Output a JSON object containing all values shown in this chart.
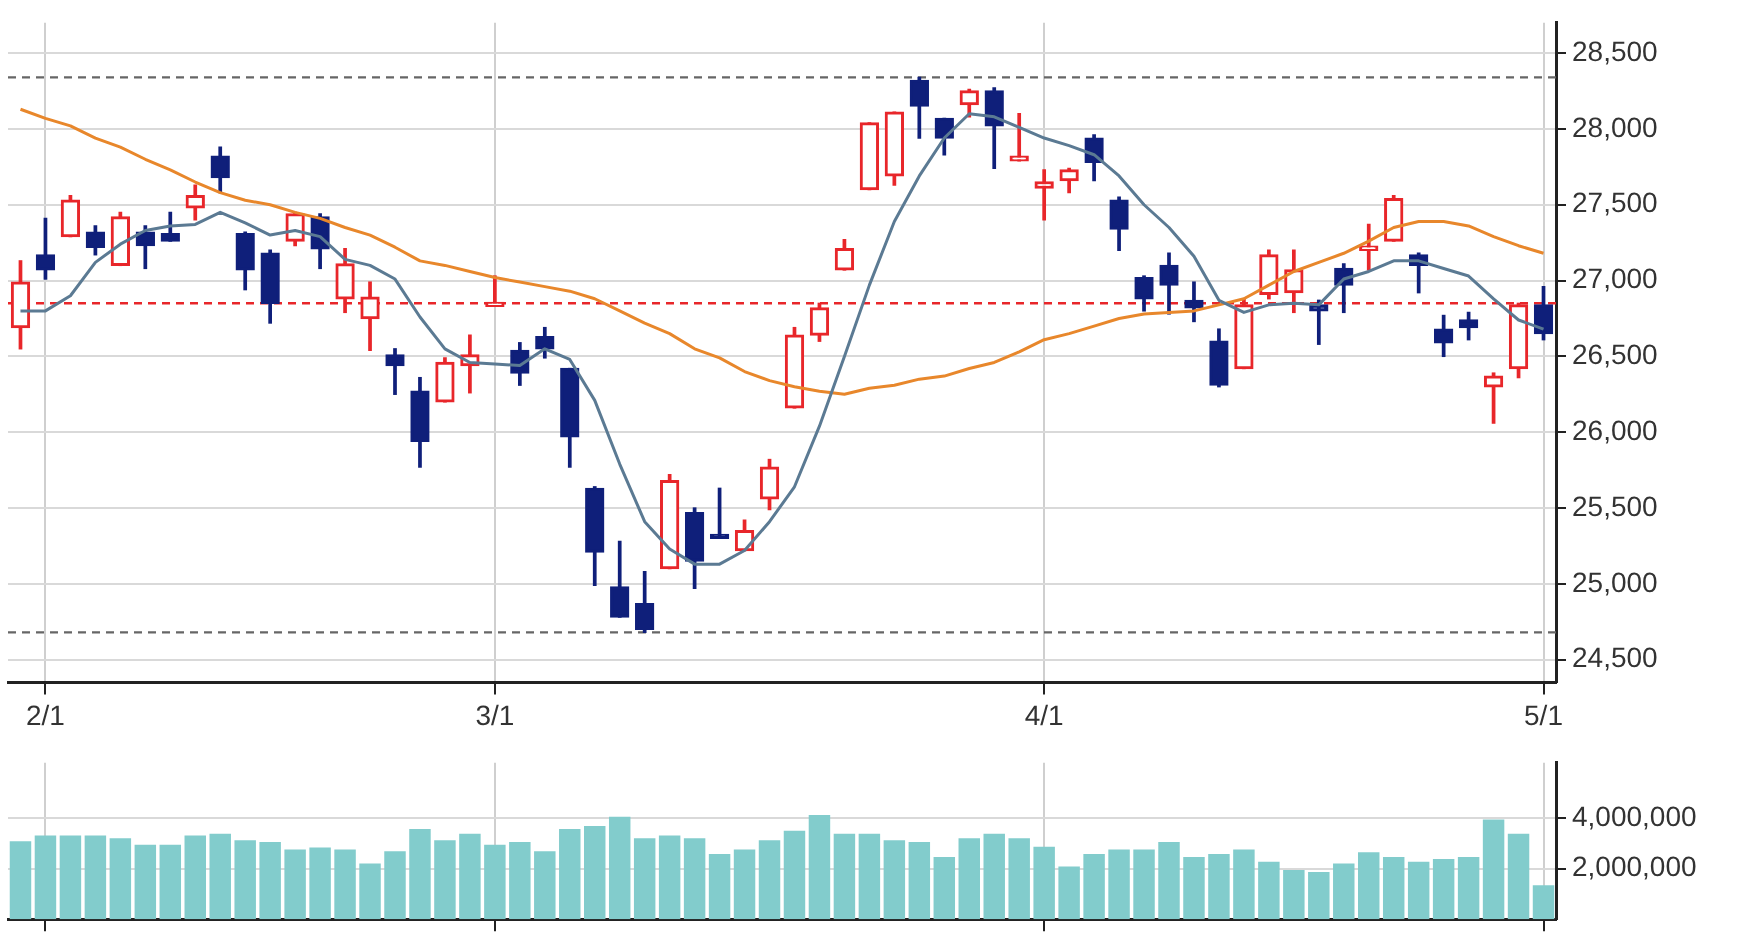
{
  "chart_data": [
    {
      "type": "candlestick",
      "categories": [
        null,
        "2/1",
        null,
        null,
        null,
        null,
        null,
        null,
        null,
        null,
        null,
        null,
        null,
        null,
        null,
        null,
        null,
        null,
        null,
        "3/1",
        null,
        null,
        null,
        null,
        null,
        null,
        null,
        null,
        null,
        null,
        null,
        null,
        null,
        null,
        null,
        null,
        null,
        null,
        null,
        null,
        null,
        "4/1",
        null,
        null,
        null,
        null,
        null,
        null,
        null,
        null,
        null,
        null,
        null,
        null,
        null,
        null,
        null,
        null,
        null,
        null,
        null,
        "5/1"
      ],
      "colors": [
        "#e8262a",
        "#0f1f7a",
        "#e8262a",
        "#0f1f7a",
        "#e8262a",
        "#0f1f7a",
        "#0f1f7a",
        "#e8262a",
        "#0f1f7a",
        "#0f1f7a",
        "#0f1f7a",
        "#e8262a",
        "#0f1f7a",
        "#e8262a",
        "#e8262a",
        "#0f1f7a",
        "#0f1f7a",
        "#e8262a",
        "#e8262a",
        "#e8262a",
        "#0f1f7a",
        "#0f1f7a",
        "#0f1f7a",
        "#0f1f7a",
        "#0f1f7a",
        "#0f1f7a",
        "#e8262a",
        "#0f1f7a",
        "#0f1f7a",
        "#e8262a",
        "#e8262a",
        "#e8262a",
        "#e8262a",
        "#e8262a",
        "#e8262a",
        "#e8262a",
        "#0f1f7a",
        "#0f1f7a",
        "#e8262a",
        "#0f1f7a",
        "#e8262a",
        "#e8262a",
        "#e8262a",
        "#0f1f7a",
        "#0f1f7a",
        "#0f1f7a",
        "#0f1f7a",
        "#0f1f7a",
        "#0f1f7a",
        "#e8262a",
        "#e8262a",
        "#e8262a",
        "#0f1f7a",
        "#0f1f7a",
        "#e8262a",
        "#e8262a",
        "#0f1f7a",
        "#0f1f7a",
        "#0f1f7a",
        "#e8262a",
        "#e8262a",
        "#0f1f7a"
      ],
      "ohlc": [
        [
          26690,
          27130,
          26550,
          26990
        ],
        [
          27170,
          27410,
          27010,
          27070
        ],
        [
          27290,
          27560,
          27290,
          27530
        ],
        [
          27320,
          27360,
          27170,
          27220
        ],
        [
          27100,
          27450,
          27100,
          27420
        ],
        [
          27320,
          27360,
          27080,
          27230
        ],
        [
          27310,
          27450,
          27260,
          27260
        ],
        [
          27480,
          27630,
          27400,
          27560
        ],
        [
          27820,
          27880,
          27580,
          27680
        ],
        [
          27310,
          27320,
          26940,
          27070
        ],
        [
          27180,
          27200,
          26720,
          26850
        ],
        [
          27260,
          27450,
          27230,
          27440
        ],
        [
          27420,
          27440,
          27080,
          27210
        ],
        [
          26880,
          27210,
          26790,
          27110
        ],
        [
          26750,
          26990,
          26540,
          26890
        ],
        [
          26510,
          26550,
          26250,
          26440
        ],
        [
          26270,
          26360,
          25770,
          25940
        ],
        [
          26200,
          26490,
          26200,
          26460
        ],
        [
          26440,
          26640,
          26260,
          26510
        ],
        [
          26830,
          27030,
          26830,
          26850
        ],
        [
          26540,
          26590,
          26310,
          26390
        ],
        [
          26630,
          26690,
          26490,
          26550
        ],
        [
          26420,
          26420,
          25770,
          25970
        ],
        [
          25630,
          25640,
          24990,
          25210
        ],
        [
          24980,
          25280,
          24780,
          24780
        ],
        [
          24870,
          25080,
          24680,
          24700
        ],
        [
          25100,
          25720,
          25100,
          25680
        ],
        [
          25470,
          25500,
          24970,
          25150
        ],
        [
          25320,
          25630,
          25300,
          25300
        ],
        [
          25220,
          25420,
          25220,
          25350
        ],
        [
          25560,
          25820,
          25490,
          25770
        ],
        [
          26160,
          26690,
          26160,
          26640
        ],
        [
          26640,
          26850,
          26600,
          26820
        ],
        [
          27070,
          27270,
          27070,
          27210
        ],
        [
          27600,
          28040,
          27600,
          28040
        ],
        [
          27690,
          28110,
          27630,
          28110
        ],
        [
          28320,
          28340,
          27940,
          28150
        ],
        [
          28070,
          28070,
          27830,
          27940
        ],
        [
          28160,
          28260,
          28080,
          28250
        ],
        [
          28250,
          28270,
          27740,
          28020
        ],
        [
          27790,
          28100,
          27790,
          27820
        ],
        [
          27610,
          27730,
          27400,
          27650
        ],
        [
          27660,
          27740,
          27580,
          27730
        ],
        [
          27940,
          27960,
          27660,
          27780
        ],
        [
          27530,
          27550,
          27200,
          27340
        ],
        [
          27020,
          27030,
          26800,
          26880
        ],
        [
          27100,
          27180,
          26780,
          26970
        ],
        [
          26870,
          26990,
          26730,
          26820
        ],
        [
          26600,
          26680,
          26300,
          26310
        ],
        [
          26420,
          26880,
          26420,
          26840
        ],
        [
          26910,
          27200,
          26880,
          27170
        ],
        [
          26920,
          27200,
          26790,
          27070
        ],
        [
          26840,
          26870,
          26580,
          26800
        ],
        [
          27080,
          27110,
          26790,
          26970
        ],
        [
          27200,
          27370,
          27070,
          27210
        ],
        [
          27260,
          27560,
          27260,
          27540
        ],
        [
          27170,
          27180,
          26920,
          27100
        ],
        [
          26680,
          26770,
          26500,
          26590
        ],
        [
          26740,
          26790,
          26610,
          26690
        ],
        [
          26300,
          26390,
          26060,
          26370
        ],
        [
          26420,
          26850,
          26360,
          26840
        ],
        [
          26840,
          26960,
          26610,
          26650
        ]
      ],
      "series": [
        {
          "type": "line",
          "color": "#5b7a93",
          "values": [
            26800,
            26800,
            26900,
            27120,
            27240,
            27330,
            27360,
            27370,
            27450,
            27380,
            27300,
            27330,
            27290,
            27140,
            27100,
            27010,
            26760,
            26550,
            26460,
            26450,
            26440,
            26550,
            26480,
            26210,
            25790,
            25410,
            25230,
            25130,
            25130,
            25220,
            25410,
            25640,
            26040,
            26500,
            26970,
            27390,
            27690,
            27940,
            28100,
            28080,
            28010,
            27940,
            27890,
            27830,
            27690,
            27500,
            27350,
            27160,
            26870,
            26790,
            26840,
            26850,
            26840,
            27010,
            27060,
            27130,
            27130,
            27080,
            27030,
            26880,
            26740,
            26680
          ]
        },
        {
          "type": "line",
          "color": "#e8872b",
          "values": [
            28130,
            28070,
            28020,
            27940,
            27880,
            27800,
            27730,
            27650,
            27580,
            27530,
            27500,
            27450,
            27410,
            27350,
            27300,
            27220,
            27130,
            27100,
            27060,
            27020,
            26990,
            26960,
            26930,
            26880,
            26800,
            26720,
            26650,
            26550,
            26490,
            26400,
            26340,
            26300,
            26270,
            26250,
            26290,
            26310,
            26350,
            26370,
            26420,
            26460,
            26530,
            26610,
            26650,
            26700,
            26750,
            26780,
            26790,
            26800,
            26840,
            26880,
            26970,
            27060,
            27120,
            27180,
            27260,
            27350,
            27390,
            27390,
            27360,
            27290,
            27230,
            27180
          ]
        }
      ],
      "ylim": [
        24350,
        28700
      ],
      "yticks": [
        {
          "value": 24500,
          "label": "24,500"
        },
        {
          "value": 25000,
          "label": "25,000"
        },
        {
          "value": 25500,
          "label": "25,500"
        },
        {
          "value": 26000,
          "label": "26,000"
        },
        {
          "value": 26500,
          "label": "26,500"
        },
        {
          "value": 27000,
          "label": "27,000"
        },
        {
          "value": 27500,
          "label": "27,500"
        },
        {
          "value": 28000,
          "label": "28,000"
        },
        {
          "value": 28500,
          "label": "28,500"
        }
      ],
      "ref_lines": [
        {
          "axis": "y",
          "value": 28340,
          "color": "#666666",
          "line_style": "dashed"
        },
        {
          "axis": "y",
          "value": 24680,
          "color": "#666666",
          "line_style": "dashed"
        },
        {
          "axis": "y",
          "value": 26850,
          "color": "#e8262a",
          "line_style": "dashed"
        }
      ],
      "grid": true
    },
    {
      "type": "bar",
      "categories": [
        null,
        null,
        null,
        null,
        null,
        null,
        null,
        null,
        null,
        null,
        null,
        null,
        null,
        null,
        null,
        null,
        null,
        null,
        null,
        null,
        null,
        null,
        null,
        null,
        null,
        null,
        null,
        null,
        null,
        null,
        null,
        null,
        null,
        null,
        null,
        null,
        null,
        null,
        null,
        null,
        null,
        null,
        null,
        null,
        null,
        null,
        null,
        null,
        null,
        null,
        null,
        null,
        null,
        null,
        null,
        null,
        null,
        null,
        null,
        null,
        null,
        null
      ],
      "color": "#82cccc",
      "values": [
        3090000,
        3320000,
        3320000,
        3320000,
        3210000,
        2950000,
        2950000,
        3320000,
        3390000,
        3130000,
        3060000,
        2760000,
        2840000,
        2760000,
        2210000,
        2690000,
        3580000,
        3130000,
        3390000,
        2950000,
        3060000,
        2690000,
        3580000,
        3690000,
        4060000,
        3210000,
        3320000,
        3210000,
        2580000,
        2760000,
        3130000,
        3510000,
        4130000,
        3390000,
        3390000,
        3130000,
        3060000,
        2470000,
        3210000,
        3390000,
        3210000,
        2870000,
        2090000,
        2580000,
        2760000,
        2760000,
        3060000,
        2470000,
        2580000,
        2760000,
        2280000,
        1950000,
        1870000,
        2210000,
        2650000,
        2470000,
        2280000,
        2390000,
        2470000,
        3950000,
        3390000,
        1350000
      ],
      "ylim": [
        0,
        6200000
      ],
      "yticks": [
        {
          "value": 2000000,
          "label": "2,000,000"
        },
        {
          "value": 4000000,
          "label": "4,000,000"
        }
      ],
      "grid": true,
      "tick_labels": "y"
    }
  ]
}
